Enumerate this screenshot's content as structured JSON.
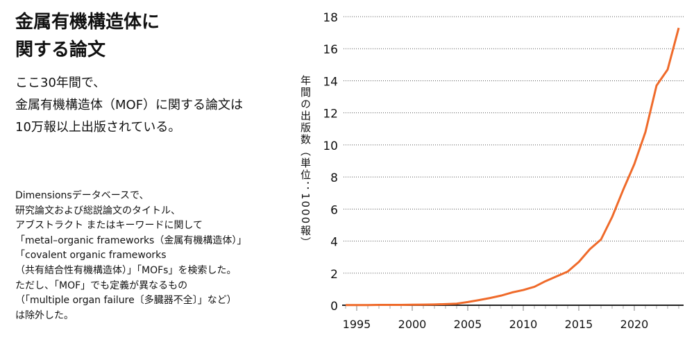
{
  "title_lines": [
    "金属有機構造体に",
    "関する論文"
  ],
  "subtitle_lines": [
    "ここ30年間で、",
    "金属有機構造体（MOF）に関する論文は",
    "10万報以上出版されている。"
  ],
  "note_lines": [
    "Dimensionsデータベースで、",
    "研究論文および総説論文のタイトル、",
    "アブストラクト またはキーワードに関して",
    "「metal–organic frameworks（金属有機構造体）」",
    "「covalent organic frameworks",
    "（共有結合性有機構造体）」「MOFs」を検索した。",
    "ただし、「MOF」でも定義が異なるもの",
    "（「multiple organ failure〔多臓器不全〕」など）",
    "は除外した。"
  ],
  "chart_data": {
    "type": "line",
    "title": "",
    "xlabel": "",
    "ylabel": "年間の出版数（単位：1000報）",
    "xlim": [
      1994,
      2024
    ],
    "ylim": [
      0,
      18
    ],
    "xticks": [
      1995,
      2000,
      2005,
      2010,
      2015,
      2020
    ],
    "yticks": [
      0,
      2,
      4,
      6,
      8,
      10,
      12,
      14,
      16,
      18
    ],
    "grid": "horizontal dotted",
    "color": "#ef6a2a",
    "x": [
      1994,
      1995,
      1996,
      1997,
      1998,
      1999,
      2000,
      2001,
      2002,
      2003,
      2004,
      2005,
      2006,
      2007,
      2008,
      2009,
      2010,
      2011,
      2012,
      2013,
      2014,
      2015,
      2016,
      2017,
      2018,
      2019,
      2020,
      2021,
      2022,
      2023,
      2024
    ],
    "values": [
      0.01,
      0.01,
      0.01,
      0.02,
      0.02,
      0.02,
      0.03,
      0.04,
      0.05,
      0.07,
      0.1,
      0.2,
      0.32,
      0.45,
      0.6,
      0.8,
      0.95,
      1.15,
      1.5,
      1.8,
      2.1,
      2.7,
      3.5,
      4.1,
      5.5,
      7.2,
      8.8,
      10.8,
      13.7,
      14.7,
      17.3
    ]
  }
}
